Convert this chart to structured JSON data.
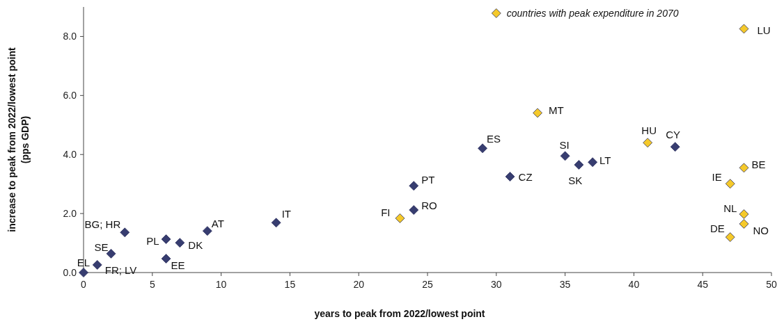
{
  "chart_data": {
    "type": "scatter",
    "xlabel": "years to peak from 2022/lowest point",
    "ylabel": "increase to peak from 2022/lowest point\n(pps GDP)",
    "xlim": [
      0,
      50
    ],
    "ylim": [
      0,
      9
    ],
    "xticks": [
      0,
      5,
      10,
      15,
      20,
      25,
      30,
      35,
      40,
      45,
      50
    ],
    "yticks": [
      {
        "value": 0,
        "label": "0.0"
      },
      {
        "value": 2,
        "label": "2.0"
      },
      {
        "value": 4,
        "label": "4.0"
      },
      {
        "value": 6,
        "label": "6.0"
      },
      {
        "value": 8,
        "label": "8.0"
      }
    ],
    "marker": "diamond",
    "legend": "top",
    "grid": false,
    "series": [
      {
        "color": "#373d70",
        "x": [
          0,
          1,
          2,
          3,
          6,
          6,
          7,
          9,
          14,
          24,
          24,
          29,
          31,
          35,
          36,
          37,
          43
        ],
        "values": [
          0,
          0.26,
          0.64,
          1.36,
          1.13,
          0.47,
          1.01,
          1.41,
          1.69,
          2.12,
          2.94,
          4.21,
          3.25,
          3.95,
          3.65,
          3.74,
          4.26
        ]
      },
      {
        "name": "countries with peak expenditure in 2070",
        "color": "#f5c92a",
        "x": [
          23,
          33,
          41,
          48,
          48,
          47,
          48,
          48,
          47
        ],
        "values": [
          1.84,
          5.41,
          4.4,
          8.26,
          3.55,
          3.01,
          1.98,
          1.65,
          1.2
        ]
      }
    ],
    "annotations": [
      {
        "text": "EL",
        "x": 0,
        "y": 0
      },
      {
        "text": "FR; LV",
        "x": 1,
        "y": 0.26
      },
      {
        "text": "SE",
        "x": 2,
        "y": 0.64
      },
      {
        "text": "BG; HR",
        "x": 3,
        "y": 1.36
      },
      {
        "text": "PL",
        "x": 6,
        "y": 1.13
      },
      {
        "text": "EE",
        "x": 6,
        "y": 0.47
      },
      {
        "text": "DK",
        "x": 7,
        "y": 1.01
      },
      {
        "text": "AT",
        "x": 9,
        "y": 1.41
      },
      {
        "text": "IT",
        "x": 14,
        "y": 1.69
      },
      {
        "text": "FI",
        "x": 23,
        "y": 1.84
      },
      {
        "text": "RO",
        "x": 24,
        "y": 2.12
      },
      {
        "text": "PT",
        "x": 24,
        "y": 2.94
      },
      {
        "text": "ES",
        "x": 29,
        "y": 4.21
      },
      {
        "text": "CZ",
        "x": 31,
        "y": 3.25
      },
      {
        "text": "MT",
        "x": 33,
        "y": 5.41
      },
      {
        "text": "SI",
        "x": 35,
        "y": 3.95
      },
      {
        "text": "SK",
        "x": 36,
        "y": 3.65
      },
      {
        "text": "LT",
        "x": 37,
        "y": 3.74
      },
      {
        "text": "HU",
        "x": 41,
        "y": 4.4
      },
      {
        "text": "CY",
        "x": 43,
        "y": 4.26
      },
      {
        "text": "LU",
        "x": 48,
        "y": 8.26
      },
      {
        "text": "BE",
        "x": 48,
        "y": 3.55
      },
      {
        "text": "IE",
        "x": 47,
        "y": 3.01
      },
      {
        "text": "NL",
        "x": 48,
        "y": 1.98
      },
      {
        "text": "NO",
        "x": 48,
        "y": 1.65
      },
      {
        "text": "DE",
        "x": 47,
        "y": 1.2
      }
    ]
  }
}
